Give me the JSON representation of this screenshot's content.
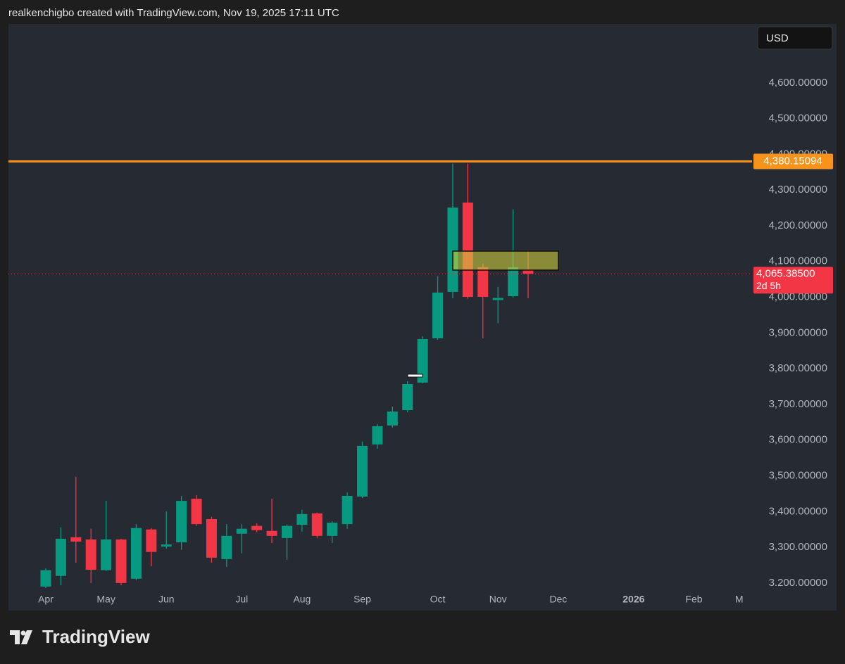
{
  "header": {
    "text": "realkenchigbo created with TradingView.com, Nov 19, 2025 17:11 UTC"
  },
  "footer": {
    "logo_text": "TradingView"
  },
  "chart_data": {
    "type": "candlestick",
    "currency": "USD",
    "up_color": "#089981",
    "down_color": "#f23645",
    "categories": [
      "Apr",
      null,
      null,
      null,
      "May",
      null,
      null,
      null,
      "Jun",
      null,
      null,
      null,
      null,
      "Jul",
      null,
      null,
      null,
      "Aug",
      null,
      null,
      null,
      "Sep",
      null,
      null,
      null,
      null,
      "Oct",
      null,
      null,
      null,
      "Nov",
      null,
      null,
      null,
      "Dec",
      null,
      null,
      null,
      null,
      "2026",
      null,
      null,
      null,
      "Feb",
      null,
      null,
      "M"
    ],
    "open": [
      3190,
      3220,
      3328,
      3322,
      3236,
      3322,
      3212,
      3350,
      3302,
      3314,
      3436,
      3379,
      3267,
      3338,
      3360,
      3346,
      3326,
      3363,
      3395,
      3332,
      3365,
      3442,
      3588,
      3641,
      3684,
      3761,
      3885,
      4015,
      4265,
      4084,
      3992,
      4003,
      4076,
      null,
      null,
      null,
      null,
      null,
      null,
      null,
      null,
      null,
      null,
      null,
      null,
      null,
      null
    ],
    "high": [
      3241,
      3356,
      3497,
      3352,
      3430,
      3324,
      3365,
      3354,
      3401,
      3444,
      3446,
      3385,
      3365,
      3365,
      3367,
      3436,
      3364,
      3405,
      3397,
      3373,
      3454,
      3596,
      3645,
      3694,
      3765,
      3891,
      4059,
      4374,
      4374,
      4094,
      4029,
      4246,
      4131,
      null,
      null,
      null,
      null,
      null,
      null,
      null,
      null,
      null,
      null,
      null,
      null,
      null,
      null
    ],
    "low": [
      3186,
      3194,
      3257,
      3200,
      3234,
      3194,
      3208,
      3247,
      3296,
      3293,
      3360,
      3257,
      3245,
      3283,
      3342,
      3312,
      3265,
      3344,
      3326,
      3312,
      3352,
      3438,
      3576,
      3635,
      3678,
      3759,
      3881,
      3997,
      3996,
      3885,
      3927,
      3999,
      3997,
      null,
      null,
      null,
      null,
      null,
      null,
      null,
      null,
      null,
      null,
      null,
      null,
      null,
      null
    ],
    "close": [
      3236,
      3324,
      3316,
      3237,
      3322,
      3200,
      3354,
      3287,
      3308,
      3430,
      3365,
      3271,
      3332,
      3352,
      3348,
      3332,
      3360,
      3393,
      3332,
      3369,
      3444,
      3584,
      3639,
      3680,
      3757,
      3883,
      4013,
      4251,
      4001,
      4001,
      3998,
      4084,
      4065.385,
      null,
      null,
      null,
      null,
      null,
      null,
      null,
      null,
      null,
      null,
      null,
      null,
      null,
      null
    ],
    "ylim": [
      3123,
      4765
    ],
    "yticks": [
      {
        "value": 3200,
        "label": "3.200.00000"
      },
      {
        "value": 3300,
        "label": "3,300.00000"
      },
      {
        "value": 3400,
        "label": "3,400.00000"
      },
      {
        "value": 3500,
        "label": "3,500.00000"
      },
      {
        "value": 3600,
        "label": "3,600.00000"
      },
      {
        "value": 3700,
        "label": "3,700.00000"
      },
      {
        "value": 3800,
        "label": "3,800.00000"
      },
      {
        "value": 3900,
        "label": "3,900.00000"
      },
      {
        "value": 4000,
        "label": "4,000.00000"
      },
      {
        "value": 4100,
        "label": "4,100.00000"
      },
      {
        "value": 4200,
        "label": "4,200.00000"
      },
      {
        "value": 4300,
        "label": "4,300.00000"
      },
      {
        "value": 4400,
        "label": "4,400.00000"
      },
      {
        "value": 4500,
        "label": "4,500.00000"
      },
      {
        "value": 4600,
        "label": "4,600.00000"
      }
    ],
    "grid": false,
    "horizontal_line": {
      "value": 4380.15094,
      "label": "4,380.15094",
      "color": "#f7931a"
    },
    "last_price": {
      "value": 4065.385,
      "label": "4,065.38500",
      "countdown": "2d 5h",
      "color": "#f23645"
    }
  }
}
